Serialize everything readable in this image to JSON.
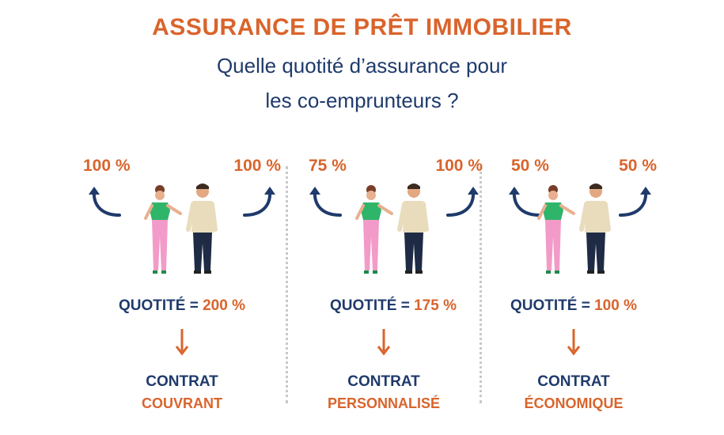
{
  "header": {
    "title": "ASSURANCE DE PRÊT IMMOBILIER",
    "subtitle_line1": "Quelle quotité d’assurance pour",
    "subtitle_line2": "les co-emprunteurs ?"
  },
  "colors": {
    "orange": "#d9642c",
    "navy": "#1f3a6b",
    "pink": "#f29bc8",
    "green": "#2fb56a"
  },
  "columns": [
    {
      "left_pct": "100 %",
      "right_pct": "100 %",
      "quotite_label": "QUOTITÉ = ",
      "quotite_value": "200 %",
      "contract_line1": "CONTRAT",
      "contract_line2": "COUVRANT"
    },
    {
      "left_pct": "75 %",
      "right_pct": "100 %",
      "quotite_label": "QUOTITÉ = ",
      "quotite_value": "175 %",
      "contract_line1": "CONTRAT",
      "contract_line2": "PERSONNALISÉ"
    },
    {
      "left_pct": "50 %",
      "right_pct": "50 %",
      "quotite_label": "QUOTITÉ = ",
      "quotite_value": "100 %",
      "contract_line1": "CONTRAT",
      "contract_line2": "ÉCONOMIQUE"
    }
  ]
}
